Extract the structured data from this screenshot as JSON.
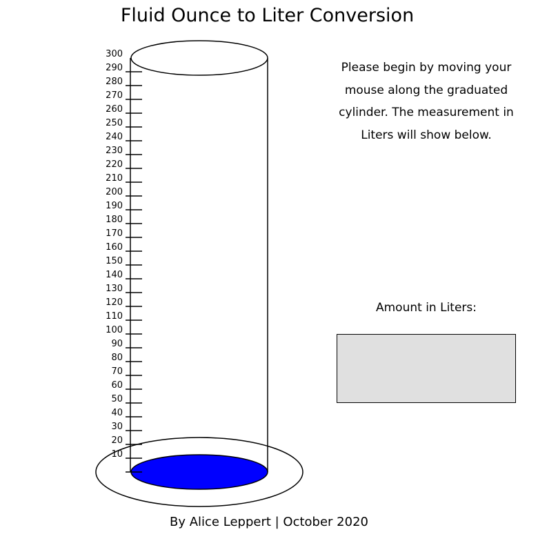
{
  "title": "Fluid Ounce to Liter Conversion",
  "instructions": "Please begin by moving your mouse along the graduated cylinder. The measurement in Liters will show below.",
  "amount_label": "Amount in Liters:",
  "amount_value": "",
  "credit": "By Alice Leppert | October 2020",
  "cylinder": {
    "scale_min": 0,
    "scale_max": 300,
    "scale_step": 10,
    "fill_level": 0,
    "liquid_color": "#0000ff",
    "output_box_color": "#e0e0e0"
  }
}
